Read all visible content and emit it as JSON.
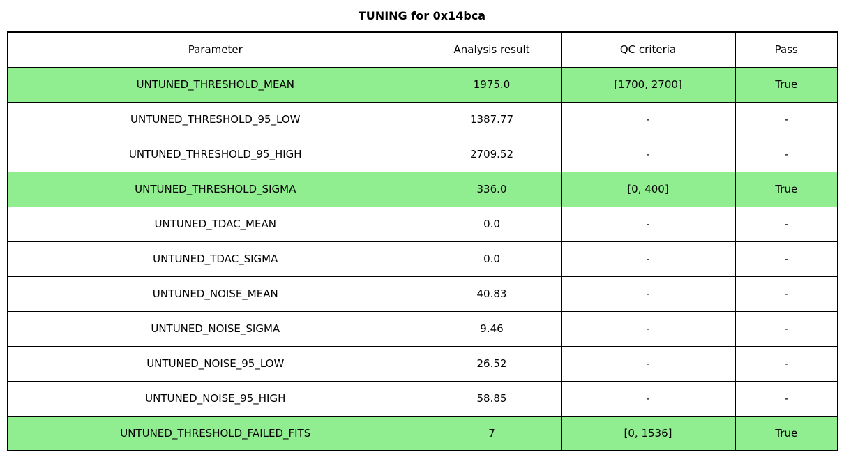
{
  "title": "TUNING for 0x14bca",
  "colors": {
    "row_highlight": "#90EE90",
    "border": "#000000",
    "background": "#ffffff",
    "text": "#000000"
  },
  "table": {
    "headers": [
      "Parameter",
      "Analysis result",
      "QC criteria",
      "Pass"
    ],
    "rows": [
      {
        "parameter": "UNTUNED_THRESHOLD_MEAN",
        "analysis_result": "1975.0",
        "qc_criteria": "[1700, 2700]",
        "pass": "True",
        "highlighted": true
      },
      {
        "parameter": "UNTUNED_THRESHOLD_95_LOW",
        "analysis_result": "1387.77",
        "qc_criteria": "-",
        "pass": "-",
        "highlighted": false
      },
      {
        "parameter": "UNTUNED_THRESHOLD_95_HIGH",
        "analysis_result": "2709.52",
        "qc_criteria": "-",
        "pass": "-",
        "highlighted": false
      },
      {
        "parameter": "UNTUNED_THRESHOLD_SIGMA",
        "analysis_result": "336.0",
        "qc_criteria": "[0, 400]",
        "pass": "True",
        "highlighted": true
      },
      {
        "parameter": "UNTUNED_TDAC_MEAN",
        "analysis_result": "0.0",
        "qc_criteria": "-",
        "pass": "-",
        "highlighted": false
      },
      {
        "parameter": "UNTUNED_TDAC_SIGMA",
        "analysis_result": "0.0",
        "qc_criteria": "-",
        "pass": "-",
        "highlighted": false
      },
      {
        "parameter": "UNTUNED_NOISE_MEAN",
        "analysis_result": "40.83",
        "qc_criteria": "-",
        "pass": "-",
        "highlighted": false
      },
      {
        "parameter": "UNTUNED_NOISE_SIGMA",
        "analysis_result": "9.46",
        "qc_criteria": "-",
        "pass": "-",
        "highlighted": false
      },
      {
        "parameter": "UNTUNED_NOISE_95_LOW",
        "analysis_result": "26.52",
        "qc_criteria": "-",
        "pass": "-",
        "highlighted": false
      },
      {
        "parameter": "UNTUNED_NOISE_95_HIGH",
        "analysis_result": "58.85",
        "qc_criteria": "-",
        "pass": "-",
        "highlighted": false
      },
      {
        "parameter": "UNTUNED_THRESHOLD_FAILED_FITS",
        "analysis_result": "7",
        "qc_criteria": "[0, 1536]",
        "pass": "True",
        "highlighted": true
      }
    ]
  }
}
